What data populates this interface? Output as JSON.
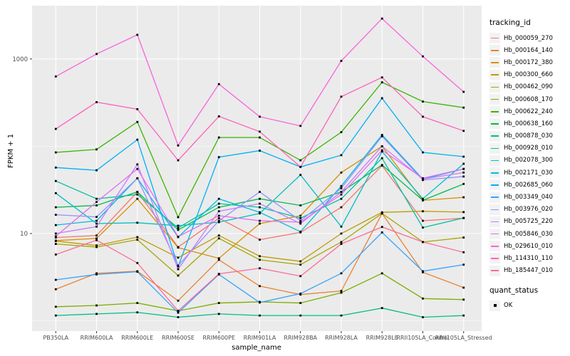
{
  "panel": {
    "bg_color": "#EBEBEB",
    "grid_color": "#FFFFFF",
    "tick_color": "#333333",
    "tick_label_color": "#4D4D4D",
    "point_color": "#000000"
  },
  "legend": {
    "tracking_title": "tracking_id",
    "quant_title": "quant_status",
    "quant_items": [
      {
        "label": "OK"
      }
    ]
  },
  "chart_data": {
    "type": "line",
    "title": "",
    "xlabel": "sample_name",
    "ylabel": "FPKM + 1",
    "y_scale": "log10",
    "ylim": [
      0.8,
      4000
    ],
    "y_ticks": [
      10,
      1000
    ],
    "y_minor_gridlines": [
      1,
      100
    ],
    "grid": "on",
    "legend_position": "right",
    "point_shape": "filled-square",
    "categories": [
      "PB350LA",
      "RRIM600LA",
      "RRIM600LE",
      "RRIM600SE",
      "RRIM600PE",
      "RRIM901LA",
      "RRIM928BA",
      "RRIM928LA",
      "RRIM928LE",
      "RRII105LA_Control",
      "RRII105LA_Stressed"
    ],
    "series": [
      {
        "name": "Hb_000059_270",
        "color": "#F8766D",
        "values": [
          9.0,
          9.5,
          30,
          7.0,
          15,
          8.5,
          10.3,
          20,
          60,
          14,
          15
        ]
      },
      {
        "name": "Hb_000164_140",
        "color": "#EA8331",
        "values": [
          2.3,
          3.5,
          3.7,
          1.7,
          5.0,
          2.5,
          2.0,
          2.2,
          17,
          3.6,
          2.4
        ]
      },
      {
        "name": "Hb_000172_380",
        "color": "#D89000",
        "values": [
          8.3,
          8.8,
          25,
          6.9,
          5.2,
          13,
          16,
          50,
          100,
          24,
          26
        ]
      },
      {
        "name": "Hb_000300_660",
        "color": "#C09B00",
        "values": [
          8.2,
          7.3,
          9.1,
          5.3,
          9.5,
          5.5,
          4.8,
          10,
          17.5,
          18,
          17.6
        ]
      },
      {
        "name": "Hb_000462_090",
        "color": "#A3A500",
        "values": [
          7.6,
          7.0,
          8.5,
          3.3,
          8.8,
          5.0,
          4.4,
          8.0,
          17,
          8.0,
          9.0
        ]
      },
      {
        "name": "Hb_000608_170",
        "color": "#7CAE00",
        "values": [
          1.45,
          1.5,
          1.6,
          1.3,
          1.6,
          1.65,
          1.6,
          2.1,
          3.5,
          1.8,
          1.75
        ]
      },
      {
        "name": "Hb_000622_240",
        "color": "#39B600",
        "values": [
          85,
          92,
          190,
          15.4,
          126,
          126,
          69,
          145,
          540,
          325,
          277
        ]
      },
      {
        "name": "Hb_000638_160",
        "color": "#00BB4E",
        "values": [
          20,
          21,
          30,
          11,
          20,
          25,
          21,
          30,
          61,
          24,
          37
        ]
      },
      {
        "name": "Hb_000878_030",
        "color": "#00BF7D",
        "values": [
          1.15,
          1.2,
          1.25,
          1.1,
          1.2,
          1.15,
          1.15,
          1.15,
          1.4,
          1.1,
          1.15
        ]
      },
      {
        "name": "Hb_000928_010",
        "color": "#00C1A3",
        "values": [
          40,
          25,
          28,
          11.6,
          22,
          20,
          15,
          25,
          73,
          11.7,
          15.1
        ]
      },
      {
        "name": "Hb_002078_300",
        "color": "#00BFC4",
        "values": [
          29,
          13,
          13.3,
          12.3,
          13.5,
          17,
          47,
          12,
          87,
          25,
          63
        ]
      },
      {
        "name": "Hb_002171_030",
        "color": "#00BAE0",
        "values": [
          12.5,
          14,
          43,
          9.1,
          25,
          17.5,
          10.5,
          35,
          135,
          42,
          55
        ]
      },
      {
        "name": "Hb_002685_060",
        "color": "#00B0F6",
        "values": [
          57,
          53,
          119,
          4.2,
          75,
          89,
          58,
          79,
          355,
          85,
          76
        ]
      },
      {
        "name": "Hb_003349_040",
        "color": "#35A2FF",
        "values": [
          2.95,
          3.4,
          3.65,
          1.24,
          3.4,
          1.62,
          2.05,
          3.5,
          10.3,
          3.7,
          4.4
        ]
      },
      {
        "name": "Hb_003976_020",
        "color": "#9590FF",
        "values": [
          16.4,
          15.5,
          43,
          4.3,
          14,
          30,
          14,
          33,
          130,
          41,
          45
        ]
      },
      {
        "name": "Hb_005725_220",
        "color": "#C77CFF",
        "values": [
          10,
          12,
          62,
          3.9,
          18,
          22,
          13,
          30,
          100,
          42,
          50
        ]
      },
      {
        "name": "Hb_005846_030",
        "color": "#E76BF3",
        "values": [
          9.3,
          23,
          55,
          9.2,
          16,
          14,
          13.5,
          28,
          90,
          43,
          55
        ]
      },
      {
        "name": "Hb_029610_010",
        "color": "#FA62DB",
        "values": [
          630,
          1140,
          1890,
          102,
          515,
          218,
          171,
          950,
          2900,
          1070,
          420
        ]
      },
      {
        "name": "Hb_114310_110",
        "color": "#FF62BC",
        "values": [
          158,
          320,
          266,
          69,
          220,
          147,
          58,
          370,
          615,
          218,
          150
        ]
      },
      {
        "name": "Hb_185447_010",
        "color": "#FF6A98",
        "values": [
          5.75,
          8.4,
          4.6,
          1.3,
          3.45,
          4.0,
          3.25,
          7.6,
          11.9,
          8.0,
          6.1
        ]
      }
    ]
  }
}
